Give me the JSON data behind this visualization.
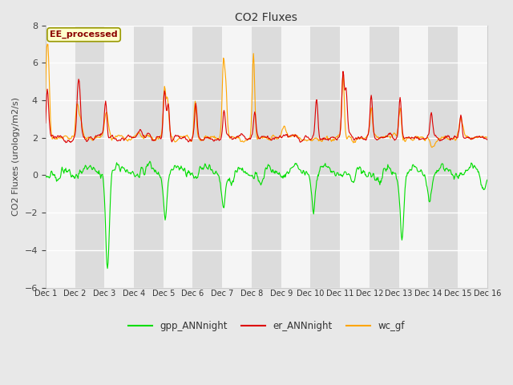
{
  "title": "CO2 Fluxes",
  "ylabel": "CO2 Fluxes (urology/m2/s)",
  "ylim": [
    -6,
    8
  ],
  "yticks": [
    -6,
    -4,
    -2,
    0,
    2,
    4,
    6,
    8
  ],
  "fig_bg_color": "#e8e8e8",
  "plot_bg_color": "#e8e8e8",
  "band_light": "#f5f5f5",
  "band_dark": "#dcdcdc",
  "legend_labels": [
    "gpp_ANNnight",
    "er_ANNnight",
    "wc_gf"
  ],
  "legend_colors": [
    "#00dd00",
    "#dd0000",
    "#ffa500"
  ],
  "annotation_text": "EE_processed",
  "annotation_color": "#8b0000",
  "annotation_bg": "#ffffcc",
  "annotation_border": "#999900",
  "n_points": 721,
  "x_start": 1,
  "x_end": 16,
  "xtick_positions": [
    1,
    2,
    3,
    4,
    5,
    6,
    7,
    8,
    9,
    10,
    11,
    12,
    13,
    14,
    15,
    16
  ],
  "xtick_labels": [
    "Dec 1",
    "Dec 2",
    "Dec 3",
    "Dec 4",
    "Dec 5",
    "Dec 6",
    "Dec 7",
    "Dec 8",
    "Dec 9",
    "Dec 10",
    "Dec 11",
    "Dec 12",
    "Dec 13",
    "Dec 14",
    "Dec 15",
    "Dec 16"
  ]
}
